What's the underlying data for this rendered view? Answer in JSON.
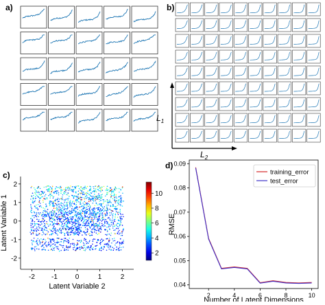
{
  "panels": {
    "a": {
      "label": "a)",
      "rows": 5,
      "cols": 5
    },
    "b": {
      "label": "b)",
      "rows": 9,
      "cols": 10,
      "axis_labels": {
        "vertical": "L",
        "vertical_sub": "1",
        "horizontal": "L",
        "horizontal_sub": "2"
      }
    },
    "c": {
      "label": "c)"
    },
    "d": {
      "label": "d)"
    }
  },
  "chart_data": [
    {
      "id": "scatter",
      "type": "scatter",
      "xlabel": "Latent Variable 2",
      "ylabel": "Latent Variable 1",
      "xlim": [
        -2.5,
        2.5
      ],
      "ylim": [
        -2.6,
        2.4
      ],
      "xticks": [
        -2,
        -1,
        0,
        1,
        2
      ],
      "yticks": [
        -2,
        -1,
        0,
        1,
        2
      ],
      "colorbar": {
        "colormap": "jet",
        "range": [
          1,
          11.5
        ],
        "ticks": [
          2,
          4,
          6,
          8,
          10
        ]
      }
    },
    {
      "id": "rmse",
      "type": "line",
      "xlabel": "Number of Latent Dimensions",
      "ylabel": "RMSE",
      "xlim": [
        0.5,
        10.5
      ],
      "ylim": [
        0.0385,
        0.0915
      ],
      "xticks": [
        2,
        4,
        6,
        8,
        10
      ],
      "yticks": [
        0.04,
        0.05,
        0.06,
        0.07,
        0.08,
        0.09
      ],
      "legend_position": "top-right",
      "x": [
        1,
        2,
        3,
        4,
        5,
        6,
        7,
        8,
        9,
        10
      ],
      "series": [
        {
          "name": "training_error",
          "color": "#d62728",
          "values": [
            0.0885,
            0.0592,
            0.0468,
            0.0474,
            0.0468,
            0.0409,
            0.0417,
            0.041,
            0.0408,
            0.041
          ]
        },
        {
          "name": "test_error",
          "color": "#3b2fc9",
          "values": [
            0.0882,
            0.0589,
            0.0466,
            0.0472,
            0.0466,
            0.0407,
            0.0415,
            0.0408,
            0.0406,
            0.0408
          ]
        }
      ]
    }
  ]
}
